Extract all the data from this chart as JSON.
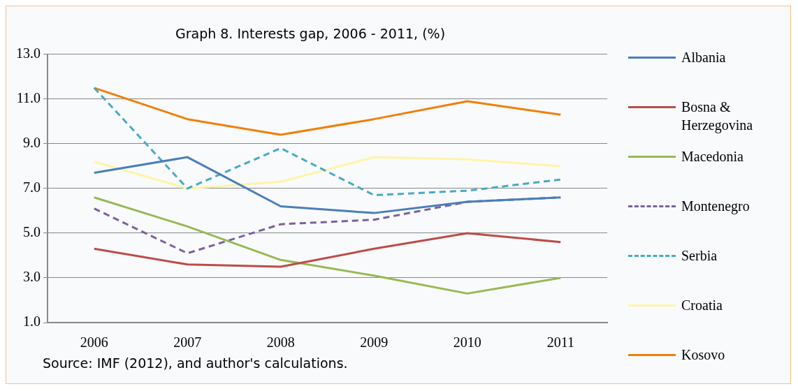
{
  "chart_data": {
    "type": "line",
    "title": "Graph 8. Interests gap, 2006 - 2011, (%)",
    "categories": [
      "2006",
      "2007",
      "2008",
      "2009",
      "2010",
      "2011"
    ],
    "series": [
      {
        "name": "Albania",
        "color": "#4a7ebb",
        "values": [
          7.7,
          8.4,
          6.2,
          5.9,
          6.4,
          6.6
        ]
      },
      {
        "name": "Bosna & Herzegovina",
        "color": "#be4b48",
        "values": [
          4.3,
          3.6,
          3.5,
          4.3,
          5.0,
          4.6
        ]
      },
      {
        "name": "Macedonia",
        "color": "#98b954",
        "values": [
          6.6,
          5.3,
          3.8,
          3.1,
          2.3,
          3.0
        ]
      },
      {
        "name": "Montenegro",
        "color": "#7d60a0",
        "values": [
          6.1,
          4.1,
          5.4,
          5.6,
          6.4,
          6.6
        ],
        "line_style": "dashed"
      },
      {
        "name": "Serbia",
        "color": "#46aac5",
        "values": [
          11.5,
          7.0,
          8.8,
          6.7,
          6.9,
          7.4
        ],
        "line_style": "dashed"
      },
      {
        "name": "Croatia",
        "color": "#fdf5a6",
        "values": [
          8.2,
          7.0,
          7.3,
          8.4,
          8.3,
          8.0
        ]
      },
      {
        "name": "Kosovo",
        "color": "#f07f09",
        "values": [
          11.5,
          10.1,
          9.4,
          10.1,
          10.9,
          10.3
        ]
      }
    ],
    "ylim": [
      1,
      13
    ],
    "yticks": [
      {
        "value": 1,
        "label": "1.0"
      },
      {
        "value": 3,
        "label": "3.0"
      },
      {
        "value": 5,
        "label": "5.0"
      },
      {
        "value": 7,
        "label": "7.0"
      },
      {
        "value": 9,
        "label": "9.0"
      },
      {
        "value": 11,
        "label": "11.0"
      },
      {
        "value": 13,
        "label": "13.0"
      }
    ],
    "grid": "y",
    "legend": "right",
    "marker": "none",
    "annotations": [
      "Source: IMF (2012), and author's calculations."
    ]
  }
}
